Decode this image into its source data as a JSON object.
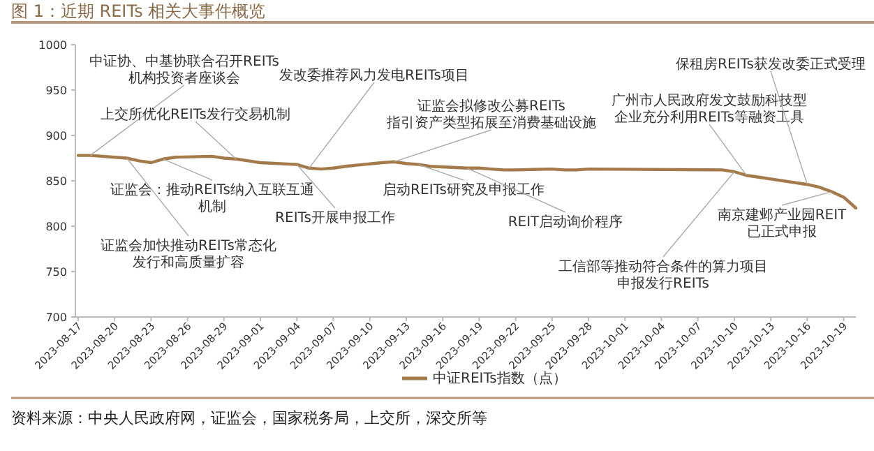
{
  "chart_data": {
    "type": "line",
    "title": "图 1：近期 REITs 相关大事件概览",
    "x": [
      "2023-08-17",
      "2023-08-18",
      "2023-08-21",
      "2023-08-22",
      "2023-08-23",
      "2023-08-24",
      "2023-08-25",
      "2023-08-28",
      "2023-08-29",
      "2023-08-30",
      "2023-08-31",
      "2023-09-01",
      "2023-09-04",
      "2023-09-05",
      "2023-09-06",
      "2023-09-07",
      "2023-09-08",
      "2023-09-11",
      "2023-09-12",
      "2023-09-13",
      "2023-09-14",
      "2023-09-15",
      "2023-09-18",
      "2023-09-19",
      "2023-09-20",
      "2023-09-21",
      "2023-09-22",
      "2023-09-25",
      "2023-09-26",
      "2023-09-27",
      "2023-09-28",
      "2023-10-09",
      "2023-10-10",
      "2023-10-11",
      "2023-10-12",
      "2023-10-13",
      "2023-10-16",
      "2023-10-17",
      "2023-10-18",
      "2023-10-19",
      "2023-10-20"
    ],
    "series": [
      {
        "name": "中证REITs指数（点）",
        "color": "#a47a4a",
        "values": [
          878,
          878,
          875,
          872,
          870,
          874,
          876,
          877,
          875,
          874,
          872,
          870,
          868,
          864,
          863,
          864,
          866,
          870,
          871,
          869,
          868,
          866,
          864,
          864,
          863,
          862,
          862,
          863,
          862,
          862,
          863,
          862,
          860,
          856,
          854,
          852,
          846,
          843,
          838,
          832,
          820
        ]
      }
    ],
    "xlim": [
      "2023-08-17",
      "2023-10-20"
    ],
    "xticks": [
      "2023-08-17",
      "2023-08-20",
      "2023-08-23",
      "2023-08-26",
      "2023-08-29",
      "2023-09-01",
      "2023-09-04",
      "2023-09-07",
      "2023-09-10",
      "2023-09-13",
      "2023-09-16",
      "2023-09-19",
      "2023-09-22",
      "2023-09-25",
      "2023-09-28",
      "2023-10-01",
      "2023-10-04",
      "2023-10-07",
      "2023-10-10",
      "2023-10-13",
      "2023-10-16",
      "2023-10-19"
    ],
    "ylim": [
      700,
      1000
    ],
    "yticks": [
      700,
      750,
      800,
      850,
      900,
      950,
      1000
    ],
    "legend": "bottom",
    "grid": false,
    "marker": "none",
    "line_style": "solid",
    "annotations": [
      {
        "text": "中证协、中基协联合召开REITs机构投资者座谈会",
        "x": "2023-08-18",
        "y": 878
      },
      {
        "text": "上交所优化REITs发行交易机制",
        "x": "2023-08-30",
        "y": 874
      },
      {
        "text": "证监会：推动REITs纳入互联互通机制",
        "x": "2023-08-24",
        "y": 874
      },
      {
        "text": "证监会加快推动REITs常态化发行和高质量扩容",
        "x": "2023-08-21",
        "y": 875
      },
      {
        "text": "发改委推荐风力发电REITs项目",
        "x": "2023-09-05",
        "y": 864
      },
      {
        "text": "REITs开展申报工作",
        "x": "2023-09-04",
        "y": 868
      },
      {
        "text": "证监会拟修改公募REITs指引资产类型拓展至消费基础设施",
        "x": "2023-09-12",
        "y": 871
      },
      {
        "text": "启动REITs研究及申报工作",
        "x": "2023-09-14",
        "y": 868
      },
      {
        "text": "REIT启动询价程序",
        "x": "2023-09-18",
        "y": 864
      },
      {
        "text": "广州市人民政府发文鼓励科技型企业充分利用REITs等融资工具",
        "x": "2023-10-11",
        "y": 856
      },
      {
        "text": "保租房REITs获发改委正式受理",
        "x": "2023-10-16",
        "y": 846
      },
      {
        "text": "南京建邺产业园REIT已正式申报",
        "x": "2023-10-18",
        "y": 838
      },
      {
        "text": "工信部等推动符合条件的算力项目申报发行REITs",
        "x": "2023-10-10",
        "y": 860
      },
      "资料来源：中央人民政府网，证监会，国家税务局，上交所，深交所等"
    ]
  }
}
